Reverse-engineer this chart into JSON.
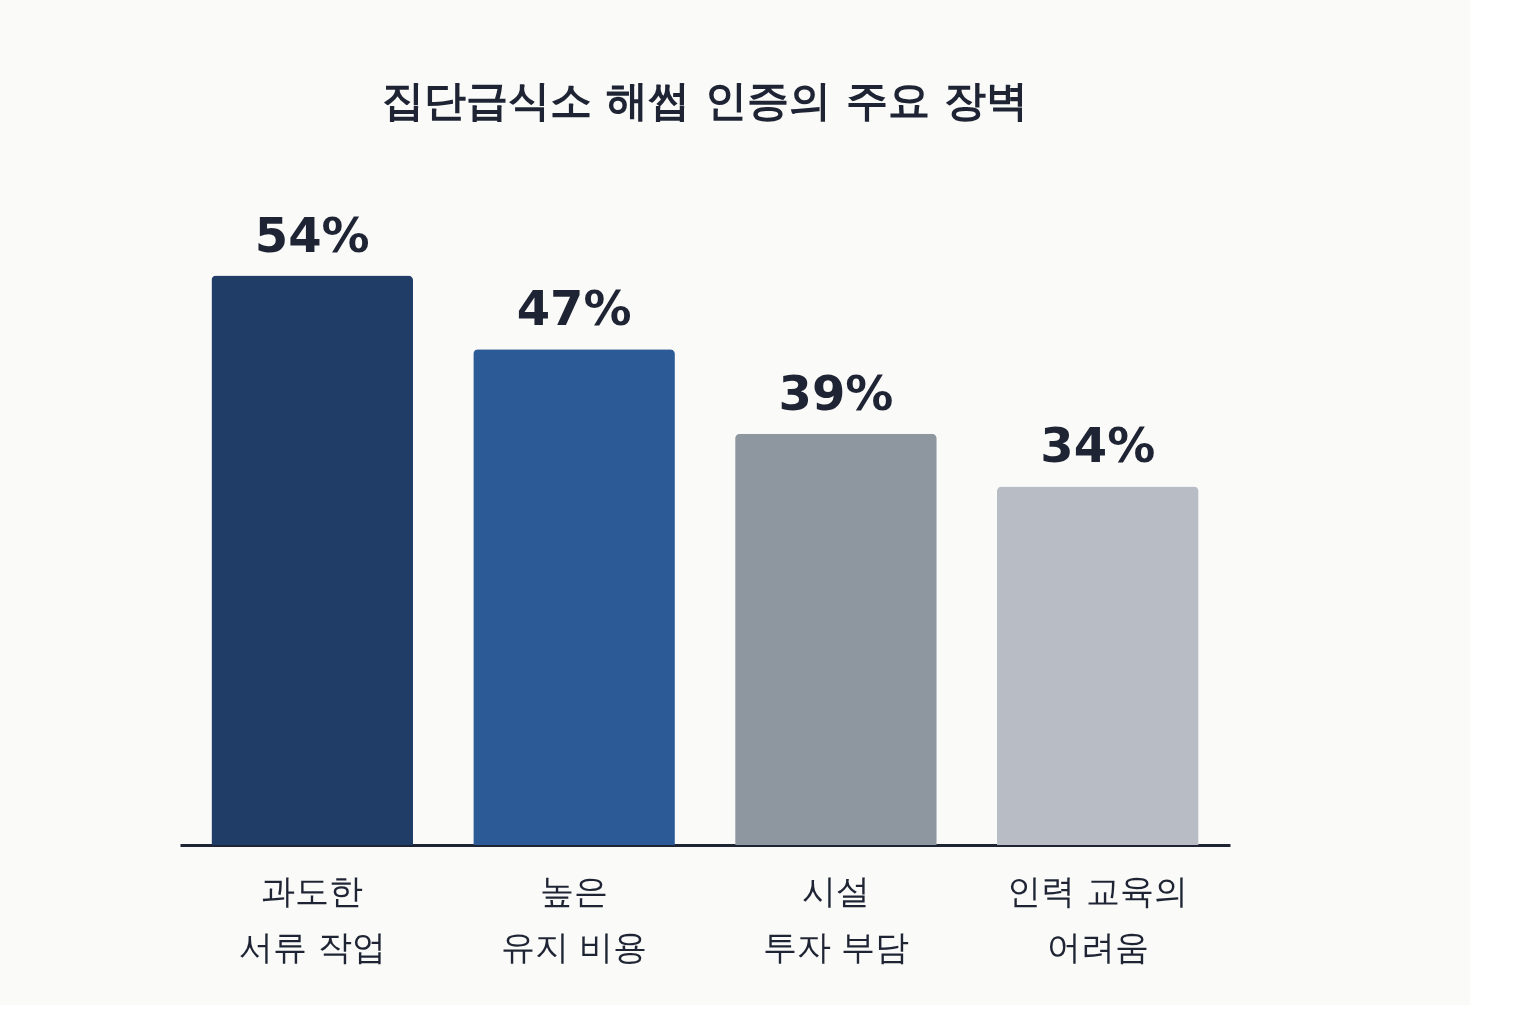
{
  "chart_data": {
    "type": "bar",
    "title": "집단급식소 해썹 인증의 주요 장벽",
    "categories": [
      "과도한\n서류 작업",
      "높은\n유지 비용",
      "시설\n투자 부담",
      "인력 교육의\n어려움"
    ],
    "values": [
      54,
      47,
      39,
      34
    ],
    "value_labels": [
      "54%",
      "47%",
      "39%",
      "34%"
    ],
    "colors": [
      "#1f3d66",
      "#2c5a96",
      "#8e979f",
      "#b8bcc4"
    ],
    "grid": false
  }
}
